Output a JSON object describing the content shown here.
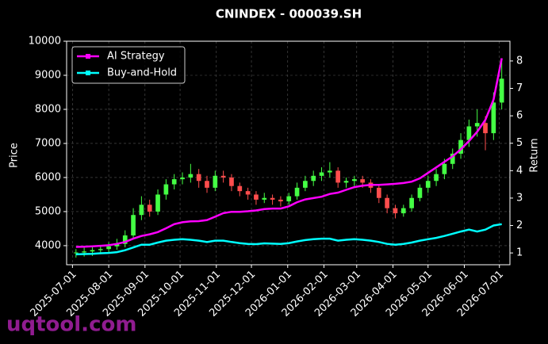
{
  "chart_data": {
    "type": "candlestick",
    "title": "CNINDEX - 000039.SH",
    "ylabel": "Price",
    "y2label": "Return",
    "watermark": "uqtool.com",
    "legend": "upper left",
    "grid": true,
    "up_color": "#44ff44",
    "down_color": "#ff4d4d",
    "x": [
      "2025-07-04",
      "2025-07-11",
      "2025-07-18",
      "2025-07-25",
      "2025-08-01",
      "2025-08-08",
      "2025-08-15",
      "2025-08-22",
      "2025-08-29",
      "2025-09-05",
      "2025-09-12",
      "2025-09-19",
      "2025-09-26",
      "2025-10-03",
      "2025-10-10",
      "2025-10-17",
      "2025-10-24",
      "2025-10-31",
      "2025-11-07",
      "2025-11-14",
      "2025-11-21",
      "2025-11-28",
      "2025-12-05",
      "2025-12-12",
      "2025-12-19",
      "2025-12-26",
      "2026-01-02",
      "2026-01-09",
      "2026-01-16",
      "2026-01-23",
      "2026-01-30",
      "2026-02-06",
      "2026-02-13",
      "2026-02-20",
      "2026-02-27",
      "2026-03-06",
      "2026-03-13",
      "2026-03-20",
      "2026-03-27",
      "2026-04-03",
      "2026-04-10",
      "2026-04-17",
      "2026-04-24",
      "2026-05-01",
      "2026-05-08",
      "2026-05-15",
      "2026-05-22",
      "2026-05-29",
      "2026-06-05",
      "2026-06-12",
      "2026-06-19",
      "2026-06-26",
      "2026-07-03"
    ],
    "open": [
      3780,
      3800,
      3830,
      3870,
      3900,
      3980,
      4050,
      4300,
      4900,
      5200,
      5000,
      5500,
      5800,
      5950,
      6000,
      6100,
      5900,
      5700,
      6050,
      6000,
      5750,
      5600,
      5500,
      5350,
      5400,
      5350,
      5300,
      5450,
      5700,
      5900,
      6050,
      6150,
      6200,
      5850,
      5900,
      5950,
      5850,
      5700,
      5400,
      5100,
      4950,
      5100,
      5400,
      5700,
      5900,
      6100,
      6400,
      6700,
      7100,
      7500,
      7600,
      7300,
      8200
    ],
    "high": [
      3900,
      3950,
      3980,
      4020,
      4100,
      4200,
      4450,
      5100,
      5450,
      5350,
      5650,
      5950,
      6100,
      6150,
      6400,
      6250,
      6050,
      6200,
      6200,
      6100,
      5850,
      5700,
      5600,
      5550,
      5500,
      5450,
      5550,
      5850,
      6050,
      6200,
      6300,
      6450,
      6300,
      6000,
      6050,
      6050,
      5950,
      5800,
      5500,
      5200,
      5200,
      5500,
      5800,
      6050,
      6250,
      6550,
      6850,
      7300,
      7700,
      8000,
      7800,
      8500,
      9500
    ],
    "low": [
      3650,
      3680,
      3700,
      3750,
      3800,
      3880,
      3950,
      4200,
      4750,
      4850,
      4900,
      5350,
      5650,
      5800,
      5850,
      5700,
      5550,
      5600,
      5850,
      5600,
      5450,
      5350,
      5200,
      5250,
      5200,
      5150,
      5200,
      5350,
      5600,
      5750,
      5900,
      6000,
      5700,
      5700,
      5750,
      5700,
      5550,
      5250,
      4950,
      4800,
      4850,
      5000,
      5300,
      5550,
      5750,
      5950,
      6250,
      6550,
      6900,
      7200,
      6800,
      7100,
      8000
    ],
    "close": [
      3800,
      3830,
      3870,
      3900,
      3980,
      4050,
      4300,
      4900,
      5200,
      5000,
      5500,
      5800,
      5950,
      6000,
      6100,
      5900,
      5700,
      6050,
      6000,
      5750,
      5600,
      5500,
      5350,
      5400,
      5350,
      5300,
      5450,
      5700,
      5900,
      6050,
      6150,
      6200,
      5850,
      5900,
      5950,
      5850,
      5700,
      5400,
      5100,
      4950,
      5100,
      5400,
      5700,
      5900,
      6100,
      6400,
      6700,
      7100,
      7500,
      7600,
      7300,
      8200,
      8900
    ],
    "series": [
      {
        "name": "AI Strategy",
        "color": "#ff00ff",
        "axis": "y2",
        "values": [
          1.22,
          1.23,
          1.24,
          1.26,
          1.28,
          1.33,
          1.4,
          1.52,
          1.62,
          1.68,
          1.76,
          1.9,
          2.05,
          2.12,
          2.15,
          2.16,
          2.2,
          2.32,
          2.45,
          2.5,
          2.5,
          2.52,
          2.55,
          2.6,
          2.62,
          2.62,
          2.7,
          2.85,
          2.95,
          3.0,
          3.05,
          3.15,
          3.2,
          3.3,
          3.4,
          3.45,
          3.48,
          3.48,
          3.5,
          3.52,
          3.55,
          3.6,
          3.72,
          3.92,
          4.12,
          4.32,
          4.52,
          4.78,
          5.08,
          5.42,
          5.85,
          6.6,
          8.1
        ]
      },
      {
        "name": "Buy-and-Hold",
        "color": "#00ffff",
        "axis": "y2",
        "values": [
          0.95,
          0.96,
          0.97,
          0.99,
          1.0,
          1.03,
          1.1,
          1.2,
          1.3,
          1.3,
          1.38,
          1.45,
          1.48,
          1.5,
          1.48,
          1.45,
          1.4,
          1.45,
          1.45,
          1.4,
          1.36,
          1.33,
          1.32,
          1.35,
          1.34,
          1.33,
          1.36,
          1.42,
          1.47,
          1.5,
          1.52,
          1.52,
          1.45,
          1.48,
          1.5,
          1.48,
          1.45,
          1.4,
          1.33,
          1.3,
          1.33,
          1.38,
          1.45,
          1.5,
          1.55,
          1.62,
          1.7,
          1.78,
          1.85,
          1.78,
          1.85,
          2.0,
          2.05
        ]
      }
    ],
    "xlim": [
      "2025-06-26",
      "2026-07-10"
    ],
    "xticks": [
      "2025-07-01",
      "2025-08-01",
      "2025-09-01",
      "2025-10-01",
      "2025-11-01",
      "2025-12-01",
      "2026-01-01",
      "2026-02-01",
      "2026-03-01",
      "2026-04-01",
      "2026-05-01",
      "2026-06-01",
      "2026-07-01"
    ],
    "ylim": [
      3440,
      10000
    ],
    "yticks": [
      4000,
      5000,
      6000,
      7000,
      8000,
      9000,
      10000
    ],
    "y2lim": [
      0.57,
      8.72
    ],
    "y2ticks": [
      1,
      2,
      3,
      4,
      5,
      6,
      7,
      8
    ]
  }
}
